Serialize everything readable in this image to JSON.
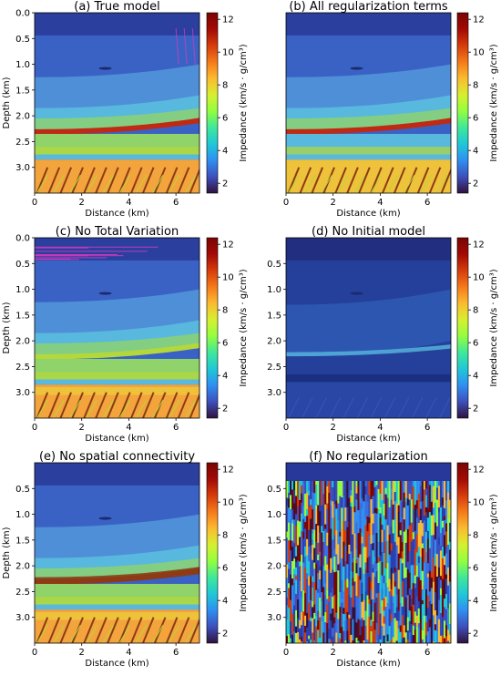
{
  "figure": {
    "colorbar_colors": [
      "#30123b",
      "#3e4fbc",
      "#2f8ff2",
      "#1fc8d6",
      "#3fe899",
      "#93fe3f",
      "#d6f02f",
      "#fbbb30",
      "#f57a1a",
      "#d63c0b",
      "#a30a05",
      "#7a0403"
    ],
    "colors": {
      "water": "#2b3f9e",
      "shallow": "#3a62c4",
      "mid": "#4f8fd8",
      "upper_sed": "#58b8de",
      "sed_green": "#8fd36a",
      "red_layer": "#c02a14",
      "deep_green": "#b4d83c",
      "deep_yellow": "#eec23a",
      "deep_orange": "#f4a43c",
      "dark_stripe": "#8a3c16",
      "dull_blue": "#24409a",
      "dull_mid": "#2c56b0"
    }
  },
  "chart_data": [
    {
      "type": "heatmap",
      "title": "(a) True model",
      "xlabel": "Distance (km)",
      "ylabel": "Depth (km)",
      "xlim": [
        0,
        7
      ],
      "ylim": [
        3.5,
        0.0
      ],
      "x_ticks": [
        "0",
        "2",
        "4",
        "6"
      ],
      "y_ticks": [
        "0.0",
        "0.5",
        "1.0",
        "1.5",
        "2.0",
        "2.5",
        "3.0"
      ],
      "colorbar": {
        "label": "Impedance (km/s · g/cm³)",
        "min": 1.4,
        "max": 12.4,
        "ticks": [
          "2",
          "4",
          "6",
          "8",
          "10",
          "12"
        ]
      },
      "layers": [
        {
          "name": "water",
          "top": 0.0,
          "bottom": 0.44,
          "value": 1.5
        },
        {
          "name": "shallow",
          "top": 0.44,
          "bottom": 1.3,
          "value": 2.8
        },
        {
          "name": "mid",
          "top": 1.3,
          "bottom": 1.85,
          "value": 3.6
        },
        {
          "name": "upper_sed",
          "top": 1.85,
          "bottom": 2.25,
          "value": 5.5
        },
        {
          "name": "red_layer",
          "top": 2.25,
          "bottom": 2.35,
          "value": 11.5
        },
        {
          "name": "sed_green",
          "top": 2.35,
          "bottom": 2.8,
          "value": 7.0
        },
        {
          "name": "deep_yellow",
          "top": 2.8,
          "bottom": 3.5,
          "value": 9.0
        }
      ]
    },
    {
      "type": "heatmap",
      "title": "(b) All regularization terms",
      "xlabel": "Distance (km)",
      "ylabel": "",
      "xlim": [
        0,
        7
      ],
      "ylim": [
        3.5,
        0.0
      ],
      "x_ticks": [
        "0",
        "2",
        "4",
        "6"
      ],
      "y_ticks": [],
      "colorbar": {
        "label": "Impedance (km/s · g/cm³)",
        "min": 1.4,
        "max": 12.4,
        "ticks": [
          "2",
          "4",
          "6",
          "8",
          "10",
          "12"
        ]
      }
    },
    {
      "type": "heatmap",
      "title": "(c) No Total Variation",
      "xlabel": "Distance (km)",
      "ylabel": "Depth (km)",
      "xlim": [
        0,
        7
      ],
      "ylim": [
        3.5,
        0.0
      ],
      "x_ticks": [
        "0",
        "2",
        "4",
        "6"
      ],
      "y_ticks": [
        "0.0",
        "0.5",
        "1.0",
        "1.5",
        "2.0",
        "2.5",
        "3.0"
      ],
      "colorbar": {
        "label": "Impedance (km/s · g/cm³)",
        "min": 1.4,
        "max": 12.4,
        "ticks": [
          "2",
          "4",
          "6",
          "8",
          "10",
          "12"
        ]
      }
    },
    {
      "type": "heatmap",
      "title": "(d) No Initial model",
      "xlabel": "Distance (km)",
      "ylabel": "",
      "xlim": [
        0,
        7
      ],
      "ylim": [
        3.5,
        0.0
      ],
      "x_ticks": [
        "0",
        "2",
        "4",
        "6"
      ],
      "y_ticks": [
        "0.5",
        "1.0",
        "1.5",
        "2.0",
        "2.5",
        "3.0"
      ],
      "colorbar": {
        "label": "Impedance (km/s · g/cm³)",
        "min": 1.4,
        "max": 12.4,
        "ticks": [
          "2",
          "4",
          "6",
          "8",
          "10",
          "12"
        ]
      }
    },
    {
      "type": "heatmap",
      "title": "(e) No spatial connectivity",
      "xlabel": "Distance (km)",
      "ylabel": "Depth (km)",
      "xlim": [
        0,
        7
      ],
      "ylim": [
        3.5,
        0.0
      ],
      "x_ticks": [
        "0",
        "2",
        "4",
        "6"
      ],
      "y_ticks": [
        "0.5",
        "1.0",
        "1.5",
        "2.0",
        "2.5",
        "3.0"
      ],
      "colorbar": {
        "label": "Impedance (km/s · g/cm³)",
        "min": 1.4,
        "max": 12.4,
        "ticks": [
          "2",
          "4",
          "6",
          "8",
          "10",
          "12"
        ]
      }
    },
    {
      "type": "heatmap",
      "title": "(f) No regularization",
      "xlabel": "Distance (km)",
      "ylabel": "",
      "xlim": [
        0,
        7
      ],
      "ylim": [
        3.5,
        0.0
      ],
      "x_ticks": [
        "0",
        "2",
        "4",
        "6"
      ],
      "y_ticks": [
        "0.5",
        "1.0",
        "1.5",
        "2.0",
        "2.5",
        "3.0"
      ],
      "colorbar": {
        "label": "Impedance (km/s · g/cm³)",
        "min": 1.4,
        "max": 12.4,
        "ticks": [
          "2",
          "4",
          "6",
          "8",
          "10",
          "12"
        ]
      }
    }
  ]
}
